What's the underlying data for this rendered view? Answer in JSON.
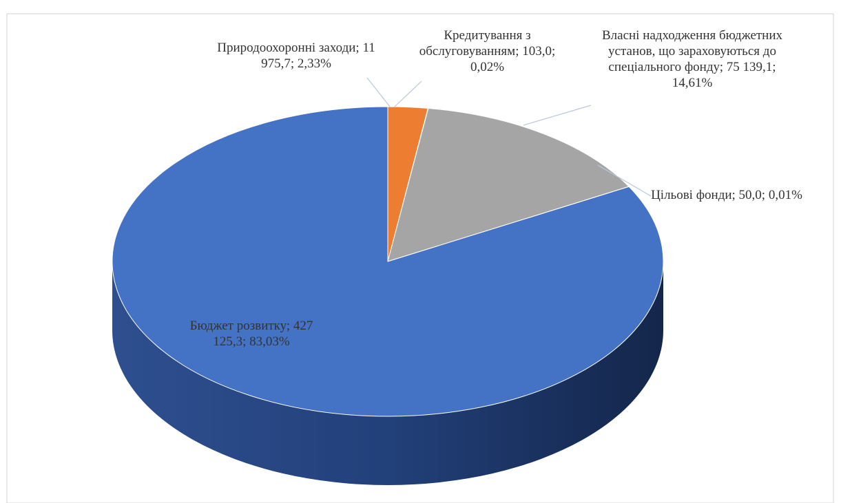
{
  "chart_data": {
    "type": "pie3d",
    "labels": [
      "Природоохоронні заходи; 11 975,7; 2,33%",
      "Кредитування з обслуговуванням; 103,0; 0,02%",
      "Власні надходження бюджетних установ, що зараховуються до спеціального фонду; 75 139,1; 14,61%",
      "Цільові фонди;  50,0; 0,01%",
      "Бюджет розвитку;  427 125,3; 83,03%"
    ],
    "values": [
      11975.7,
      103.0,
      75139.1,
      50.0,
      427125.3
    ],
    "percents": [
      2.33,
      0.02,
      14.61,
      0.01,
      83.03
    ],
    "colors": [
      "#ed7d31",
      "#ffc000",
      "#a5a5a5",
      "#5b9bd5",
      "#4472c4"
    ]
  }
}
